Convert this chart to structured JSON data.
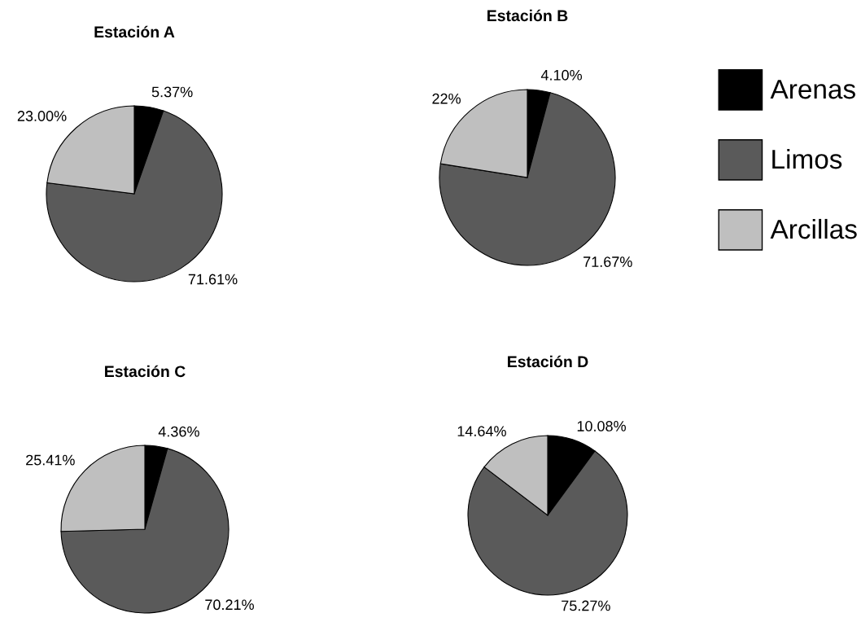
{
  "chart_data": [
    {
      "type": "pie",
      "title": "Estación A",
      "values": [
        5.37,
        71.61,
        23.0
      ],
      "value_labels": [
        "5.37%",
        "71.61%",
        "23.00%"
      ],
      "colors": [
        "#000000",
        "#5a5a5a",
        "#bfbfbf"
      ]
    },
    {
      "type": "pie",
      "title": "Estación B",
      "categories": [
        "Arenas",
        "Limos",
        "Arcillas"
      ],
      "values": [
        4.1,
        71.67,
        22
      ],
      "value_labels": [
        "4.10%",
        "71.67%",
        "22%"
      ],
      "colors": [
        "#000000",
        "#5a5a5a",
        "#bfbfbf"
      ],
      "legend": "right"
    },
    {
      "type": "pie",
      "title": "Estación C",
      "values": [
        4.36,
        70.21,
        25.41
      ],
      "value_labels": [
        "4.36%",
        "70.21%",
        "25.41%"
      ],
      "colors": [
        "#000000",
        "#5a5a5a",
        "#bfbfbf"
      ]
    },
    {
      "type": "pie",
      "title": "Estación D",
      "values": [
        10.08,
        75.27,
        14.64
      ],
      "value_labels": [
        "10.08%",
        "75.27%",
        "14.64%"
      ],
      "colors": [
        "#000000",
        "#5a5a5a",
        "#bfbfbf"
      ]
    }
  ]
}
